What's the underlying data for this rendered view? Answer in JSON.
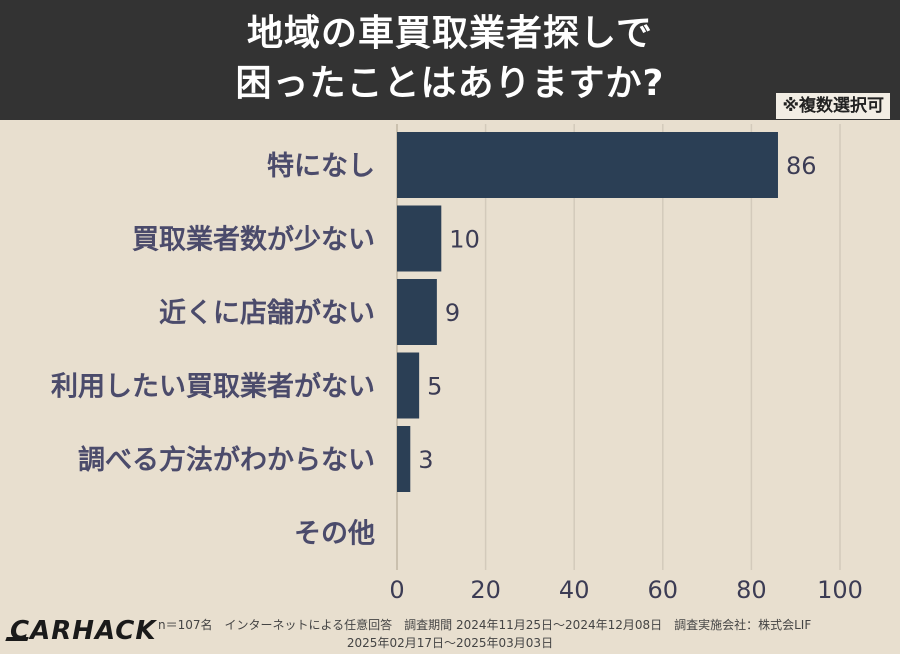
{
  "header": {
    "title_line_1": "地域の車買取業者探しで",
    "title_line_2": "困ったことはありますか?",
    "note": "※複数選択可"
  },
  "chart_data": {
    "type": "bar",
    "orientation": "horizontal",
    "categories": [
      "特になし",
      "買取業者数が少ない",
      "近くに店舗がない",
      "利用したい買取業者がない",
      "調べる方法がわからない",
      "その他"
    ],
    "values": [
      86,
      10,
      9,
      5,
      3,
      0
    ],
    "value_labels": [
      "86",
      "10",
      "9",
      "5",
      "3",
      ""
    ],
    "xlim": [
      0,
      100
    ],
    "xticks": [
      0,
      20,
      40,
      60,
      80,
      100
    ],
    "grid": true,
    "bar_color": "#2b3f55"
  },
  "footer": {
    "logo": "CARHACK",
    "line_1": "n＝107名　インターネットによる任意回答　調査期間 2024年11月25日〜2024年12月08日　調査実施会社：株式会LIF",
    "line_2": "2025年02月17日〜2025年03月03日"
  },
  "colors": {
    "background": "#e8dfcf",
    "header": "#333333",
    "grid": "#d3cabb",
    "text": "#4b4b6b"
  }
}
